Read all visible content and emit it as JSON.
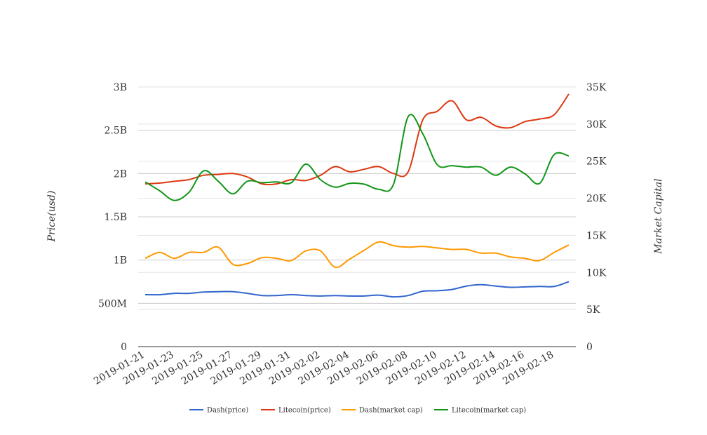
{
  "chart_data": {
    "type": "line",
    "title": "",
    "ylabel_left": "Price(usd)",
    "ylabel_right": "Market Capital",
    "ylim_left": [
      0,
      3000000000
    ],
    "ylim_right": [
      0,
      35000
    ],
    "yticks_left": [
      {
        "value": 0,
        "label": "0"
      },
      {
        "value": 500000000,
        "label": "500M"
      },
      {
        "value": 1000000000,
        "label": "1B"
      },
      {
        "value": 1500000000,
        "label": "1.5B"
      },
      {
        "value": 2000000000,
        "label": "2B"
      },
      {
        "value": 2500000000,
        "label": "2.5B"
      },
      {
        "value": 3000000000,
        "label": "3B"
      }
    ],
    "yticks_right": [
      {
        "value": 0,
        "label": "0"
      },
      {
        "value": 5000,
        "label": "5K"
      },
      {
        "value": 10000,
        "label": "10K"
      },
      {
        "value": 15000,
        "label": "15K"
      },
      {
        "value": 20000,
        "label": "20K"
      },
      {
        "value": 25000,
        "label": "25K"
      },
      {
        "value": 30000,
        "label": "30K"
      },
      {
        "value": 35000,
        "label": "35K"
      }
    ],
    "x": [
      "2019-01-21",
      "2019-01-22",
      "2019-01-23",
      "2019-01-24",
      "2019-01-25",
      "2019-01-26",
      "2019-01-27",
      "2019-01-28",
      "2019-01-29",
      "2019-01-30",
      "2019-01-31",
      "2019-02-01",
      "2019-02-02",
      "2019-02-03",
      "2019-02-04",
      "2019-02-05",
      "2019-02-06",
      "2019-02-07",
      "2019-02-08",
      "2019-02-09",
      "2019-02-10",
      "2019-02-11",
      "2019-02-12",
      "2019-02-13",
      "2019-02-14",
      "2019-02-15",
      "2019-02-16",
      "2019-02-17",
      "2019-02-18",
      "2019-02-19"
    ],
    "xtick_labels": [
      "2019-01-21",
      "2019-01-23",
      "2019-01-25",
      "2019-01-27",
      "2019-01-29",
      "2019-01-31",
      "2019-02-02",
      "2019-02-04",
      "2019-02-06",
      "2019-02-08",
      "2019-02-10",
      "2019-02-12",
      "2019-02-14",
      "2019-02-16",
      "2019-02-18"
    ],
    "grid": true,
    "legend_position": "bottom",
    "series": [
      {
        "name": "Dash(price)",
        "axis": "left",
        "color": "#3366cc",
        "values": [
          600000000,
          600000000,
          615000000,
          615000000,
          630000000,
          635000000,
          635000000,
          615000000,
          590000000,
          590000000,
          600000000,
          590000000,
          585000000,
          590000000,
          585000000,
          585000000,
          595000000,
          575000000,
          590000000,
          640000000,
          645000000,
          660000000,
          700000000,
          715000000,
          700000000,
          685000000,
          690000000,
          695000000,
          695000000,
          750000000
        ]
      },
      {
        "name": "Litecoin(price)",
        "axis": "left",
        "color": "#dc3912",
        "values": [
          1880000000,
          1890000000,
          1910000000,
          1930000000,
          1980000000,
          1990000000,
          2000000000,
          1960000000,
          1880000000,
          1880000000,
          1930000000,
          1920000000,
          1980000000,
          2080000000,
          2020000000,
          2050000000,
          2080000000,
          2000000000,
          2020000000,
          2620000000,
          2720000000,
          2840000000,
          2620000000,
          2650000000,
          2550000000,
          2530000000,
          2600000000,
          2630000000,
          2680000000,
          2920000000
        ]
      },
      {
        "name": "Dash(market cap)",
        "axis": "right",
        "color": "#ff9900",
        "values": [
          11900,
          12700,
          11900,
          12700,
          12700,
          13400,
          11100,
          11200,
          12000,
          11900,
          11600,
          12900,
          12900,
          10700,
          11800,
          13000,
          14100,
          13600,
          13400,
          13500,
          13300,
          13100,
          13100,
          12600,
          12600,
          12100,
          11900,
          11600,
          12700,
          13700
        ]
      },
      {
        "name": "Litecoin(market cap)",
        "axis": "right",
        "color": "#109618",
        "values": [
          22200,
          21000,
          19700,
          20800,
          23700,
          22300,
          20600,
          22300,
          22100,
          22200,
          22100,
          24600,
          22500,
          21500,
          22000,
          21900,
          21200,
          21900,
          31000,
          28700,
          24500,
          24400,
          24200,
          24200,
          23100,
          24200,
          23300,
          22000,
          25900,
          25700
        ]
      }
    ]
  }
}
